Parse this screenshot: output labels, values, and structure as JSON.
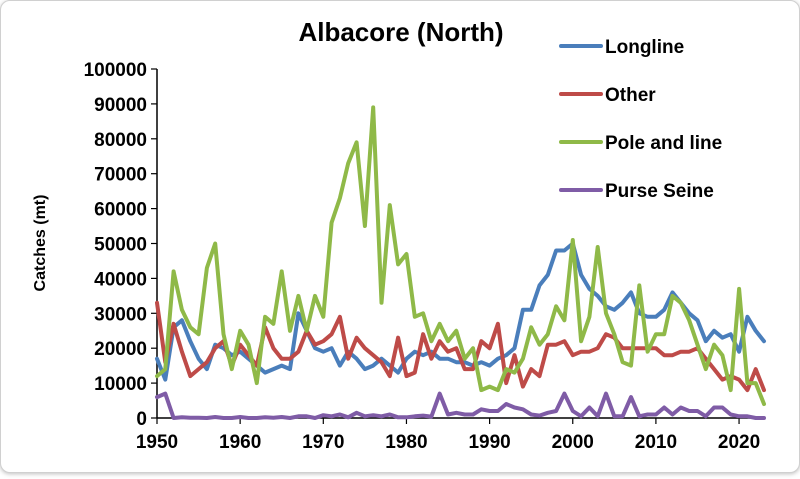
{
  "chart_data": {
    "type": "line",
    "title": "Albacore (North)",
    "ylabel": "Catches (mt)",
    "xlabel": "",
    "xlim": [
      1950,
      2023
    ],
    "ylim": [
      0,
      100000
    ],
    "xticks": [
      1950,
      1960,
      1970,
      1980,
      1990,
      2000,
      2010,
      2020
    ],
    "yticks": [
      0,
      10000,
      20000,
      30000,
      40000,
      50000,
      60000,
      70000,
      80000,
      90000,
      100000
    ],
    "legend_position": "top-right",
    "grid": false,
    "x": [
      1950,
      1951,
      1952,
      1953,
      1954,
      1955,
      1956,
      1957,
      1958,
      1959,
      1960,
      1961,
      1962,
      1963,
      1964,
      1965,
      1966,
      1967,
      1968,
      1969,
      1970,
      1971,
      1972,
      1973,
      1974,
      1975,
      1976,
      1977,
      1978,
      1979,
      1980,
      1981,
      1982,
      1983,
      1984,
      1985,
      1986,
      1987,
      1988,
      1989,
      1990,
      1991,
      1992,
      1993,
      1994,
      1995,
      1996,
      1997,
      1998,
      1999,
      2000,
      2001,
      2002,
      2003,
      2004,
      2005,
      2006,
      2007,
      2008,
      2009,
      2010,
      2011,
      2012,
      2013,
      2014,
      2015,
      2016,
      2017,
      2018,
      2019,
      2020,
      2021,
      2022,
      2023
    ],
    "series": [
      {
        "name": "Longline",
        "color": "#4a7ebb",
        "values": [
          17000,
          11000,
          26000,
          28000,
          22000,
          17000,
          14000,
          21000,
          20000,
          18000,
          19000,
          17000,
          15000,
          13000,
          14000,
          15000,
          14000,
          30000,
          25000,
          20000,
          19000,
          20000,
          15000,
          19000,
          17000,
          14000,
          15000,
          17000,
          15000,
          13000,
          17000,
          19000,
          18000,
          19000,
          17000,
          17000,
          16000,
          16000,
          15000,
          16000,
          15000,
          17000,
          18000,
          20000,
          31000,
          31000,
          38000,
          41000,
          48000,
          48000,
          50000,
          41000,
          37000,
          35000,
          32000,
          31000,
          33000,
          36000,
          30000,
          29000,
          29000,
          31000,
          36000,
          33000,
          30000,
          28000,
          22000,
          25000,
          23000,
          24000,
          19000,
          29000,
          25000,
          22000
        ]
      },
      {
        "name": "Other",
        "color": "#be4b48",
        "values": [
          33000,
          16000,
          27000,
          19000,
          12000,
          14000,
          16000,
          20000,
          22000,
          15000,
          21000,
          18000,
          15000,
          26000,
          20000,
          17000,
          17000,
          19000,
          25000,
          21000,
          22000,
          24000,
          29000,
          17000,
          23000,
          20000,
          18000,
          16000,
          12000,
          23000,
          12000,
          13000,
          24000,
          17000,
          22000,
          19000,
          20000,
          14000,
          14000,
          22000,
          20000,
          27000,
          10000,
          18000,
          9000,
          14000,
          12000,
          21000,
          21000,
          22000,
          18000,
          19000,
          19000,
          20000,
          24000,
          23000,
          20000,
          20000,
          20000,
          20000,
          20000,
          18000,
          18000,
          19000,
          19000,
          20000,
          17000,
          14000,
          11000,
          12000,
          11000,
          8000,
          14000,
          8000
        ]
      },
      {
        "name": "Pole and line",
        "color": "#8fb948",
        "values": [
          12000,
          14000,
          42000,
          31000,
          26000,
          24000,
          43000,
          50000,
          24000,
          14000,
          25000,
          21000,
          10000,
          29000,
          27000,
          42000,
          25000,
          35000,
          25000,
          35000,
          29000,
          56000,
          63000,
          73000,
          79000,
          55000,
          89000,
          33000,
          61000,
          44000,
          47000,
          29000,
          30000,
          22000,
          27000,
          22000,
          25000,
          17000,
          20000,
          8000,
          9000,
          8000,
          14000,
          13000,
          17000,
          26000,
          21000,
          24000,
          32000,
          28000,
          51000,
          22000,
          29000,
          49000,
          30000,
          24000,
          16000,
          15000,
          38000,
          19000,
          24000,
          24000,
          35000,
          33000,
          28000,
          21000,
          14000,
          21000,
          18000,
          8000,
          37000,
          10000,
          10000,
          4000
        ]
      },
      {
        "name": "Purse Seine",
        "color": "#7f5ca6",
        "values": [
          6000,
          7000,
          0,
          200,
          100,
          100,
          0,
          300,
          0,
          0,
          300,
          0,
          0,
          200,
          100,
          300,
          0,
          500,
          500,
          0,
          800,
          500,
          1000,
          200,
          1500,
          500,
          800,
          500,
          1000,
          200,
          200,
          500,
          700,
          400,
          7000,
          1000,
          1500,
          1000,
          1000,
          2500,
          2000,
          2000,
          4000,
          3000,
          2500,
          1000,
          700,
          1500,
          2000,
          7000,
          2000,
          500,
          3000,
          500,
          7000,
          500,
          500,
          6000,
          500,
          1000,
          1000,
          3000,
          1000,
          3000,
          2000,
          2000,
          500,
          3000,
          3000,
          1000,
          500,
          500,
          0,
          0
        ]
      }
    ]
  }
}
